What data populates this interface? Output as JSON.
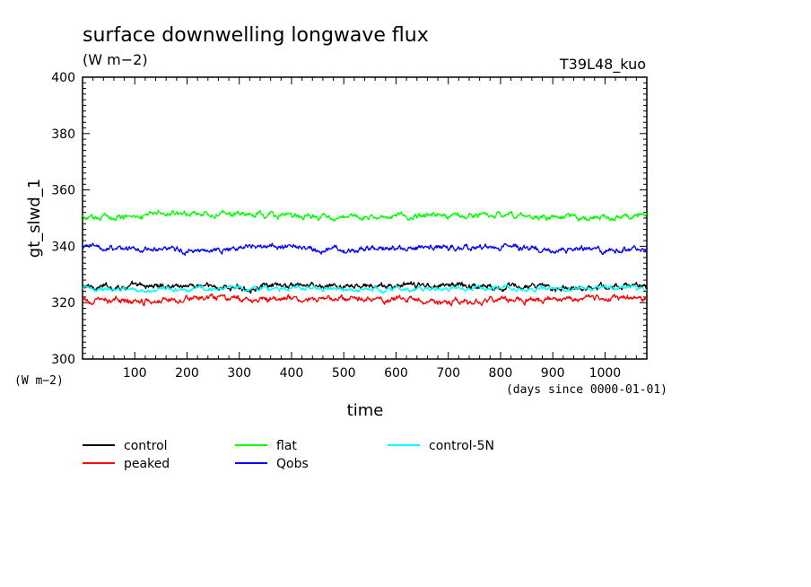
{
  "chart_data": {
    "type": "line",
    "title": "surface downwelling longwave flux",
    "units": "(W m−2)",
    "experiment": "T39L48_kuo",
    "ylabel": "gt_slwd_1",
    "y_units_label": "(W m−2)",
    "xlabel": "time",
    "x_units_label": "(days since 0000-01-01)",
    "xlim": [
      0,
      1080
    ],
    "ylim": [
      300,
      400
    ],
    "x_ticks": [
      100,
      200,
      300,
      400,
      500,
      600,
      700,
      800,
      900,
      1000
    ],
    "y_ticks": [
      300,
      320,
      340,
      360,
      380,
      400
    ],
    "x_tick_labels": [
      "100",
      "200",
      "300",
      "400",
      "500",
      "600",
      "700",
      "800",
      "900",
      "1000"
    ],
    "y_tick_labels": [
      "300",
      "320",
      "340",
      "360",
      "380",
      "400"
    ],
    "grid": false,
    "legend_position": "bottom",
    "series": [
      {
        "name": "control",
        "color": "#000000",
        "mean": 325.8,
        "amplitude": 1.2,
        "x": [
          0,
          100,
          200,
          300,
          400,
          500,
          600,
          700,
          800,
          900,
          1000,
          1080
        ],
        "values": [
          325.5,
          325.8,
          326.2,
          325.2,
          326.0,
          325.6,
          325.9,
          326.4,
          325.7,
          325.4,
          325.8,
          326.0
        ]
      },
      {
        "name": "peaked",
        "color": "#ff0000",
        "mean": 321.2,
        "amplitude": 1.2,
        "x": [
          0,
          100,
          200,
          300,
          400,
          500,
          600,
          700,
          800,
          900,
          1000,
          1080
        ],
        "values": [
          320.5,
          320.8,
          321.5,
          321.2,
          321.6,
          321.0,
          321.4,
          319.8,
          321.1,
          321.3,
          321.9,
          321.2
        ]
      },
      {
        "name": "flat",
        "color": "#00ff00",
        "mean": 350.8,
        "amplitude": 1.2,
        "x": [
          0,
          100,
          200,
          300,
          400,
          500,
          600,
          700,
          800,
          900,
          1000,
          1080
        ],
        "values": [
          350.0,
          351.0,
          352.0,
          351.2,
          350.8,
          350.2,
          351.0,
          350.6,
          351.2,
          350.4,
          350.0,
          351.5
        ]
      },
      {
        "name": "Qobs",
        "color": "#0000ff",
        "mean": 339.2,
        "amplitude": 1.2,
        "x": [
          0,
          100,
          200,
          300,
          400,
          500,
          600,
          700,
          800,
          900,
          1000,
          1080
        ],
        "values": [
          340.0,
          339.0,
          338.5,
          339.6,
          339.8,
          338.6,
          339.8,
          339.4,
          339.6,
          338.8,
          338.6,
          339.0
        ]
      },
      {
        "name": "control-5N",
        "color": "#00ffff",
        "mean": 325.0,
        "amplitude": 1.0,
        "x": [
          0,
          100,
          200,
          300,
          400,
          500,
          600,
          700,
          800,
          900,
          1000,
          1080
        ],
        "values": [
          325.0,
          324.5,
          325.0,
          325.2,
          324.8,
          325.0,
          324.6,
          324.9,
          325.2,
          324.8,
          325.5,
          325.0
        ]
      }
    ]
  }
}
